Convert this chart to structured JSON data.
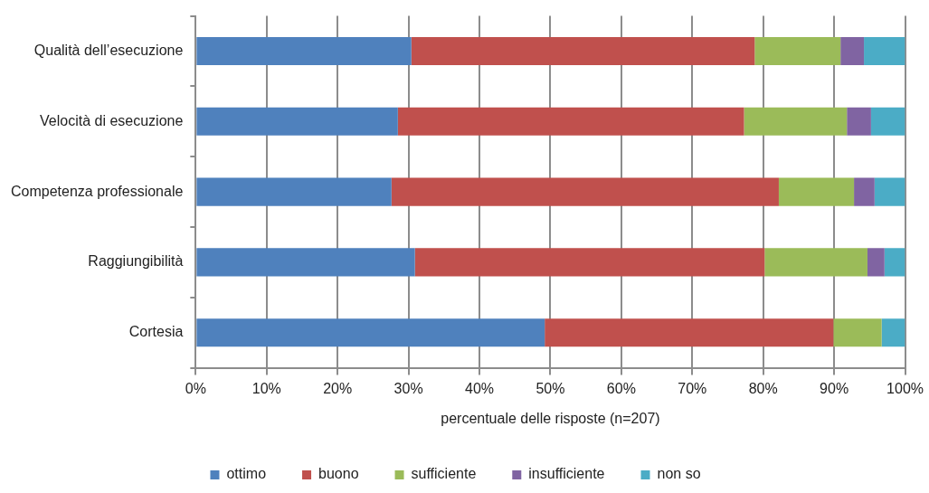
{
  "chart_data": {
    "type": "bar",
    "orientation": "horizontal",
    "stacked": true,
    "categories": [
      "Qualità dell’esecuzione",
      "Velocità di esecuzione",
      "Competenza professionale",
      "Raggiungibilità",
      "Cortesia"
    ],
    "series": [
      {
        "name": "ottimo",
        "color": "#4f81bd",
        "values": [
          30.4,
          28.5,
          27.6,
          30.9,
          49.2
        ]
      },
      {
        "name": "buono",
        "color": "#c0504d",
        "values": [
          48.4,
          48.8,
          54.6,
          49.3,
          40.7
        ]
      },
      {
        "name": "sufficiente",
        "color": "#9bbb59",
        "values": [
          12.1,
          14.5,
          10.6,
          14.5,
          6.8
        ]
      },
      {
        "name": "insufficiente",
        "color": "#8064a2",
        "values": [
          3.3,
          3.4,
          2.9,
          2.4,
          0
        ]
      },
      {
        "name": "non so",
        "color": "#4bacc6",
        "values": [
          5.8,
          4.8,
          4.3,
          2.9,
          3.3
        ]
      }
    ],
    "xlabel": "percentuale delle risposte (n=207)",
    "xlim": [
      0,
      100
    ],
    "xticks": [
      {
        "value": 0,
        "label": "0%"
      },
      {
        "value": 10,
        "label": "10%"
      },
      {
        "value": 20,
        "label": "20%"
      },
      {
        "value": 30,
        "label": "30%"
      },
      {
        "value": 40,
        "label": "40%"
      },
      {
        "value": 50,
        "label": "50%"
      },
      {
        "value": 60,
        "label": "60%"
      },
      {
        "value": 70,
        "label": "70%"
      },
      {
        "value": 80,
        "label": "80%"
      },
      {
        "value": 90,
        "label": "90%"
      },
      {
        "value": 100,
        "label": "100%"
      }
    ],
    "grid": "x",
    "legend": "bottom"
  }
}
